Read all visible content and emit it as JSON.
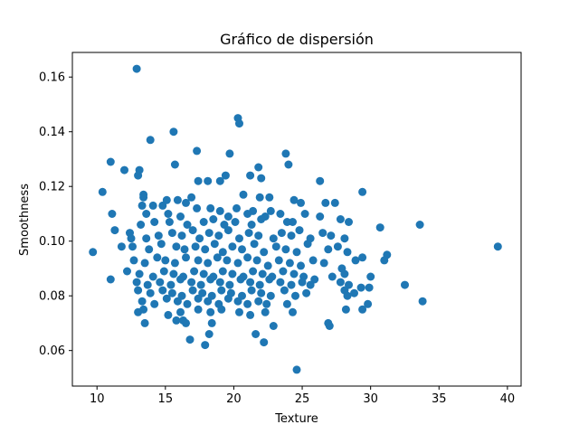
{
  "chart_data": {
    "type": "scatter",
    "title": "Gráfico de dispersión",
    "xlabel": "Texture",
    "ylabel": "Smoothness",
    "xlim": [
      8.2,
      41.0
    ],
    "ylim": [
      0.047,
      0.169
    ],
    "xticks": [
      10,
      15,
      20,
      25,
      30,
      35,
      40
    ],
    "yticks": [
      0.06,
      0.08,
      0.1,
      0.12,
      0.14,
      0.16
    ],
    "xtick_labels": [
      "10",
      "15",
      "20",
      "25",
      "30",
      "35",
      "40"
    ],
    "ytick_labels": [
      "0.06",
      "0.08",
      "0.10",
      "0.12",
      "0.14",
      "0.16"
    ],
    "grid": false,
    "marker_color": "#1f77b4",
    "series": [
      {
        "points": [
          [
            12.9,
            0.163
          ],
          [
            20.3,
            0.145
          ],
          [
            20.4,
            0.143
          ],
          [
            15.6,
            0.14
          ],
          [
            13.9,
            0.137
          ],
          [
            17.3,
            0.133
          ],
          [
            19.7,
            0.132
          ],
          [
            23.8,
            0.132
          ],
          [
            11.0,
            0.129
          ],
          [
            24.0,
            0.128
          ],
          [
            15.7,
            0.128
          ],
          [
            21.8,
            0.127
          ],
          [
            13.1,
            0.126
          ],
          [
            12.0,
            0.126
          ],
          [
            13.0,
            0.124
          ],
          [
            19.4,
            0.124
          ],
          [
            21.2,
            0.124
          ],
          [
            22.0,
            0.123
          ],
          [
            26.3,
            0.122
          ],
          [
            17.4,
            0.122
          ],
          [
            18.1,
            0.122
          ],
          [
            19.0,
            0.122
          ],
          [
            10.4,
            0.118
          ],
          [
            29.4,
            0.118
          ],
          [
            11.1,
            0.11
          ],
          [
            13.4,
            0.117
          ],
          [
            13.4,
            0.116
          ],
          [
            15.1,
            0.115
          ],
          [
            15.9,
            0.115
          ],
          [
            16.9,
            0.116
          ],
          [
            20.7,
            0.117
          ],
          [
            21.9,
            0.116
          ],
          [
            22.6,
            0.116
          ],
          [
            24.4,
            0.115
          ],
          [
            24.9,
            0.114
          ],
          [
            27.4,
            0.114
          ],
          [
            26.7,
            0.114
          ],
          [
            13.3,
            0.113
          ],
          [
            14.1,
            0.113
          ],
          [
            14.8,
            0.113
          ],
          [
            16.5,
            0.114
          ],
          [
            17.3,
            0.112
          ],
          [
            18.3,
            0.112
          ],
          [
            19.0,
            0.111
          ],
          [
            20.2,
            0.112
          ],
          [
            21.4,
            0.111
          ],
          [
            22.7,
            0.111
          ],
          [
            23.4,
            0.11
          ],
          [
            13.6,
            0.11
          ],
          [
            15.2,
            0.11
          ],
          [
            16.1,
            0.109
          ],
          [
            19.6,
            0.109
          ],
          [
            21.0,
            0.11
          ],
          [
            22.3,
            0.109
          ],
          [
            25.2,
            0.11
          ],
          [
            11.3,
            0.104
          ],
          [
            12.4,
            0.103
          ],
          [
            13.2,
            0.106
          ],
          [
            14.2,
            0.107
          ],
          [
            15.3,
            0.107
          ],
          [
            16.6,
            0.106
          ],
          [
            17.8,
            0.107
          ],
          [
            18.5,
            0.108
          ],
          [
            19.3,
            0.106
          ],
          [
            20.1,
            0.107
          ],
          [
            21.3,
            0.106
          ],
          [
            22.0,
            0.108
          ],
          [
            23.9,
            0.107
          ],
          [
            24.3,
            0.107
          ],
          [
            26.3,
            0.109
          ],
          [
            27.8,
            0.108
          ],
          [
            28.4,
            0.107
          ],
          [
            30.7,
            0.105
          ],
          [
            33.6,
            0.106
          ],
          [
            12.5,
            0.101
          ],
          [
            13.6,
            0.101
          ],
          [
            14.5,
            0.102
          ],
          [
            15.5,
            0.103
          ],
          [
            16.2,
            0.102
          ],
          [
            17.0,
            0.104
          ],
          [
            17.5,
            0.101
          ],
          [
            18.2,
            0.103
          ],
          [
            18.9,
            0.102
          ],
          [
            19.6,
            0.104
          ],
          [
            20.4,
            0.101
          ],
          [
            21.1,
            0.103
          ],
          [
            21.8,
            0.102
          ],
          [
            22.9,
            0.101
          ],
          [
            23.5,
            0.103
          ],
          [
            24.2,
            0.102
          ],
          [
            24.8,
            0.104
          ],
          [
            25.6,
            0.101
          ],
          [
            26.5,
            0.103
          ],
          [
            27.1,
            0.102
          ],
          [
            28.1,
            0.101
          ],
          [
            12.6,
            0.098
          ],
          [
            13.8,
            0.097
          ],
          [
            14.7,
            0.099
          ],
          [
            15.8,
            0.098
          ],
          [
            16.4,
            0.097
          ],
          [
            17.2,
            0.098
          ],
          [
            17.9,
            0.097
          ],
          [
            18.6,
            0.099
          ],
          [
            19.2,
            0.096
          ],
          [
            19.9,
            0.098
          ],
          [
            20.6,
            0.097
          ],
          [
            21.5,
            0.099
          ],
          [
            22.2,
            0.096
          ],
          [
            23.1,
            0.098
          ],
          [
            23.8,
            0.097
          ],
          [
            24.6,
            0.096
          ],
          [
            25.4,
            0.099
          ],
          [
            26.9,
            0.097
          ],
          [
            27.6,
            0.098
          ],
          [
            28.3,
            0.096
          ],
          [
            11.8,
            0.098
          ],
          [
            9.7,
            0.096
          ],
          [
            39.3,
            0.098
          ],
          [
            31.2,
            0.095
          ],
          [
            29.4,
            0.094
          ],
          [
            28.9,
            0.093
          ],
          [
            31.0,
            0.093
          ],
          [
            12.7,
            0.093
          ],
          [
            13.5,
            0.092
          ],
          [
            14.4,
            0.094
          ],
          [
            15.0,
            0.093
          ],
          [
            15.7,
            0.092
          ],
          [
            16.5,
            0.094
          ],
          [
            17.4,
            0.093
          ],
          [
            18.1,
            0.092
          ],
          [
            18.8,
            0.094
          ],
          [
            19.5,
            0.093
          ],
          [
            20.3,
            0.092
          ],
          [
            21.0,
            0.094
          ],
          [
            21.7,
            0.093
          ],
          [
            22.5,
            0.091
          ],
          [
            23.3,
            0.093
          ],
          [
            24.1,
            0.092
          ],
          [
            24.9,
            0.091
          ],
          [
            25.8,
            0.093
          ],
          [
            26.6,
            0.092
          ],
          [
            27.9,
            0.09
          ],
          [
            28.1,
            0.088
          ],
          [
            30.0,
            0.087
          ],
          [
            12.2,
            0.089
          ],
          [
            13.1,
            0.088
          ],
          [
            14.1,
            0.087
          ],
          [
            14.9,
            0.089
          ],
          [
            15.6,
            0.088
          ],
          [
            16.3,
            0.087
          ],
          [
            17.1,
            0.089
          ],
          [
            17.8,
            0.088
          ],
          [
            18.5,
            0.087
          ],
          [
            19.2,
            0.089
          ],
          [
            19.9,
            0.088
          ],
          [
            20.7,
            0.087
          ],
          [
            21.4,
            0.089
          ],
          [
            22.1,
            0.088
          ],
          [
            22.8,
            0.087
          ],
          [
            23.6,
            0.089
          ],
          [
            24.4,
            0.088
          ],
          [
            25.1,
            0.087
          ],
          [
            25.9,
            0.086
          ],
          [
            27.2,
            0.087
          ],
          [
            27.8,
            0.085
          ],
          [
            11.0,
            0.086
          ],
          [
            12.9,
            0.085
          ],
          [
            13.7,
            0.084
          ],
          [
            14.6,
            0.085
          ],
          [
            15.4,
            0.084
          ],
          [
            16.1,
            0.086
          ],
          [
            16.9,
            0.085
          ],
          [
            17.6,
            0.084
          ],
          [
            18.3,
            0.086
          ],
          [
            19.0,
            0.085
          ],
          [
            19.7,
            0.084
          ],
          [
            20.5,
            0.086
          ],
          [
            21.2,
            0.085
          ],
          [
            21.9,
            0.084
          ],
          [
            22.6,
            0.086
          ],
          [
            23.4,
            0.085
          ],
          [
            24.2,
            0.084
          ],
          [
            25.0,
            0.085
          ],
          [
            25.6,
            0.084
          ],
          [
            28.4,
            0.084
          ],
          [
            32.5,
            0.084
          ],
          [
            28.1,
            0.082
          ],
          [
            29.3,
            0.083
          ],
          [
            29.9,
            0.083
          ],
          [
            13.0,
            0.082
          ],
          [
            13.9,
            0.081
          ],
          [
            14.8,
            0.082
          ],
          [
            15.5,
            0.081
          ],
          [
            16.2,
            0.08
          ],
          [
            17.0,
            0.082
          ],
          [
            17.7,
            0.081
          ],
          [
            18.4,
            0.08
          ],
          [
            19.1,
            0.082
          ],
          [
            19.8,
            0.081
          ],
          [
            20.6,
            0.08
          ],
          [
            21.3,
            0.082
          ],
          [
            22.0,
            0.081
          ],
          [
            22.7,
            0.08
          ],
          [
            23.7,
            0.082
          ],
          [
            24.5,
            0.08
          ],
          [
            25.3,
            0.081
          ],
          [
            28.3,
            0.08
          ],
          [
            28.8,
            0.081
          ],
          [
            13.3,
            0.078
          ],
          [
            14.2,
            0.077
          ],
          [
            15.1,
            0.079
          ],
          [
            15.9,
            0.078
          ],
          [
            16.6,
            0.077
          ],
          [
            17.4,
            0.079
          ],
          [
            18.1,
            0.078
          ],
          [
            18.9,
            0.077
          ],
          [
            19.6,
            0.079
          ],
          [
            20.3,
            0.078
          ],
          [
            21.0,
            0.077
          ],
          [
            21.8,
            0.078
          ],
          [
            22.4,
            0.077
          ],
          [
            23.9,
            0.077
          ],
          [
            33.8,
            0.078
          ],
          [
            29.8,
            0.077
          ],
          [
            28.2,
            0.075
          ],
          [
            29.4,
            0.075
          ],
          [
            13.0,
            0.074
          ],
          [
            13.4,
            0.075
          ],
          [
            15.2,
            0.073
          ],
          [
            16.1,
            0.074
          ],
          [
            17.4,
            0.075
          ],
          [
            18.3,
            0.074
          ],
          [
            19.1,
            0.075
          ],
          [
            20.4,
            0.074
          ],
          [
            21.2,
            0.073
          ],
          [
            22.3,
            0.074
          ],
          [
            24.3,
            0.074
          ],
          [
            13.5,
            0.07
          ],
          [
            15.8,
            0.071
          ],
          [
            16.3,
            0.071
          ],
          [
            16.5,
            0.07
          ],
          [
            18.4,
            0.07
          ],
          [
            22.9,
            0.069
          ],
          [
            26.9,
            0.07
          ],
          [
            27.0,
            0.069
          ],
          [
            21.6,
            0.066
          ],
          [
            18.2,
            0.066
          ],
          [
            16.8,
            0.064
          ],
          [
            22.2,
            0.063
          ],
          [
            17.9,
            0.062
          ],
          [
            24.6,
            0.053
          ]
        ]
      }
    ]
  }
}
